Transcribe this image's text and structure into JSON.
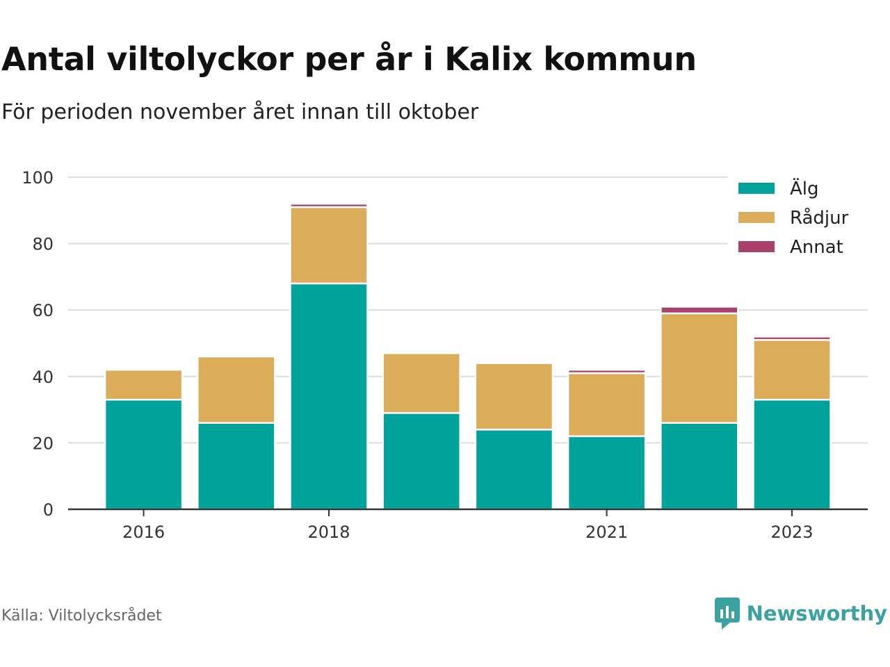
{
  "title": "Antal viltolyckor per år i Kalix kommun",
  "subtitle": "För perioden november året innan till oktober",
  "source": "Källa: Viltolycksrådet",
  "brand": {
    "name": "Newsworthy",
    "icon": "newsworthy-logo-icon",
    "color": "#3aa3a0"
  },
  "chart_data": {
    "type": "bar",
    "stacked": true,
    "categories": [
      "2016",
      "2017",
      "2018",
      "2019",
      "2020",
      "2021",
      "2022",
      "2023"
    ],
    "x_tick_labels": [
      "2016",
      "",
      "2018",
      "",
      "",
      "2021",
      "",
      "2023"
    ],
    "series": [
      {
        "name": "Älg",
        "color": "#00a39a",
        "values": [
          33,
          26,
          68,
          29,
          24,
          22,
          26,
          33
        ]
      },
      {
        "name": "Rådjur",
        "color": "#dbac59",
        "values": [
          9,
          20,
          23,
          18,
          20,
          19,
          33,
          18
        ]
      },
      {
        "name": "Annat",
        "color": "#a8426a",
        "values": [
          0,
          0,
          1,
          0,
          0,
          1,
          2,
          1
        ]
      }
    ],
    "ylim": [
      0,
      100
    ],
    "yticks": [
      0,
      20,
      40,
      60,
      80,
      100
    ],
    "grid": true,
    "legend_position": "top-right"
  }
}
